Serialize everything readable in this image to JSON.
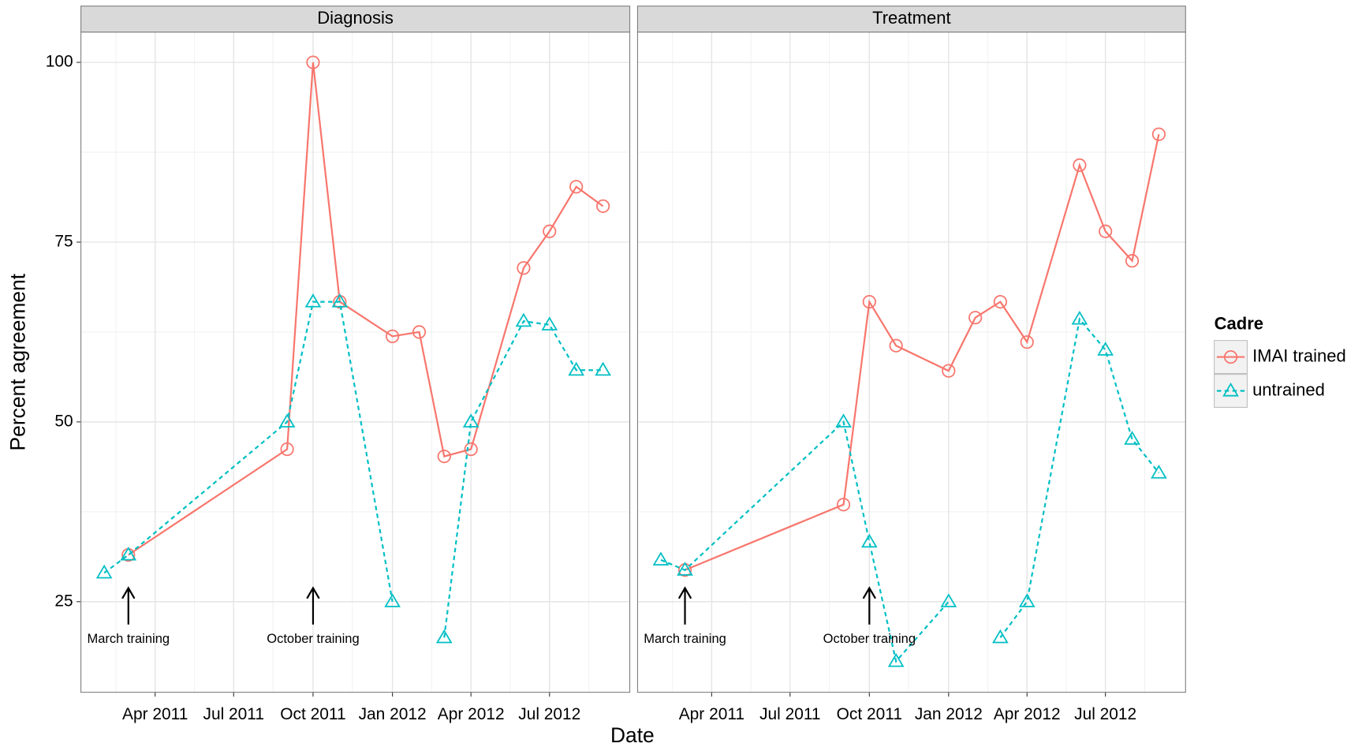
{
  "chart_data": {
    "type": "line",
    "x_label": "Date",
    "y_label": "Percent agreement",
    "legend_title": "Cadre",
    "legend_position": "right",
    "grid": true,
    "x": [
      "2011-02",
      "2011-03",
      "2011-09",
      "2011-10",
      "2011-11",
      "2012-01",
      "2012-02",
      "2012-03",
      "2012-04",
      "2012-06",
      "2012-07",
      "2012-08",
      "2012-09"
    ],
    "xlim": [
      "2011-01-05",
      "2012-10-02"
    ],
    "xticks": [
      {
        "value": "2011-04",
        "label": "Apr 2011"
      },
      {
        "value": "2011-07",
        "label": "Jul 2011"
      },
      {
        "value": "2011-10",
        "label": "Oct 2011"
      },
      {
        "value": "2012-01",
        "label": "Jan 2012"
      },
      {
        "value": "2012-04",
        "label": "Apr 2012"
      },
      {
        "value": "2012-07",
        "label": "Jul 2012"
      }
    ],
    "ylim": [
      12.4,
      104.2
    ],
    "yticks": [
      25,
      50,
      75,
      100
    ],
    "series": [
      {
        "name": "IMAI trained",
        "color": "#F8766D",
        "dash": "solid",
        "marker": "circle"
      },
      {
        "name": "untrained",
        "color": "#00BFC4",
        "dash": "dotted",
        "marker": "triangle"
      }
    ],
    "facets": [
      {
        "title": "Diagnosis",
        "values": [
          [
            null,
            31.5,
            46.2,
            100,
            66.7,
            61.9,
            62.5,
            45.2,
            46.2,
            71.4,
            76.5,
            82.7,
            80
          ],
          [
            29,
            31.5,
            50,
            66.7,
            66.7,
            25,
            null,
            20,
            50,
            64,
            63.5,
            57.2,
            57.2
          ]
        ],
        "annotations": [
          {
            "x": "2011-03",
            "text": "March training"
          },
          {
            "x": "2011-10",
            "text": "October training"
          }
        ]
      },
      {
        "title": "Treatment",
        "values": [
          [
            null,
            29.4,
            38.5,
            66.7,
            60.6,
            57.1,
            64.5,
            66.7,
            61.1,
            85.7,
            76.5,
            72.4,
            90
          ],
          [
            30.8,
            29.4,
            50,
            33.3,
            16.7,
            25,
            null,
            20,
            25,
            64.3,
            60,
            47.6,
            42.9
          ]
        ],
        "annotations": [
          {
            "x": "2011-03",
            "text": "March training"
          },
          {
            "x": "2011-10",
            "text": "October training"
          }
        ]
      }
    ]
  }
}
